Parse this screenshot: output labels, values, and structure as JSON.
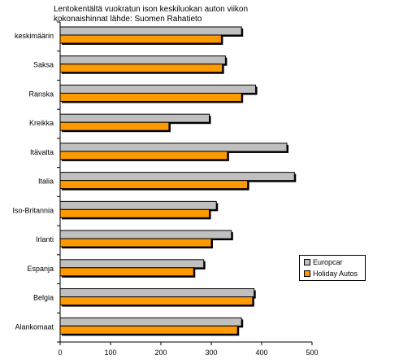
{
  "chart_data": {
    "type": "bar",
    "orientation": "horizontal",
    "title_lines": [
      "Lentokentältä vuokratun ison keskiluokan auton viikon",
      "kokonaishinnat lähde: Suomen Rahatieto"
    ],
    "categories": [
      "keskimäärin",
      "Saksa",
      "Ranska",
      "Kreikka",
      "Itävalta",
      "Italia",
      "Iso-Britannia",
      "Irlanti",
      "Espanja",
      "Belgia",
      "Alankomaat"
    ],
    "series": [
      {
        "name": "Europcar",
        "color": "#c0c0c0",
        "values": [
          360,
          328,
          388,
          296,
          450,
          465,
          310,
          340,
          285,
          385,
          360
        ]
      },
      {
        "name": "Holiday Autos",
        "color": "#ff9900",
        "values": [
          320,
          322,
          360,
          216,
          332,
          372,
          296,
          300,
          265,
          382,
          352
        ]
      }
    ],
    "xlim": [
      0,
      500
    ],
    "xticks": [
      "0",
      "100",
      "200",
      "300",
      "400",
      "500"
    ],
    "grid": false,
    "legend_position": "right"
  }
}
